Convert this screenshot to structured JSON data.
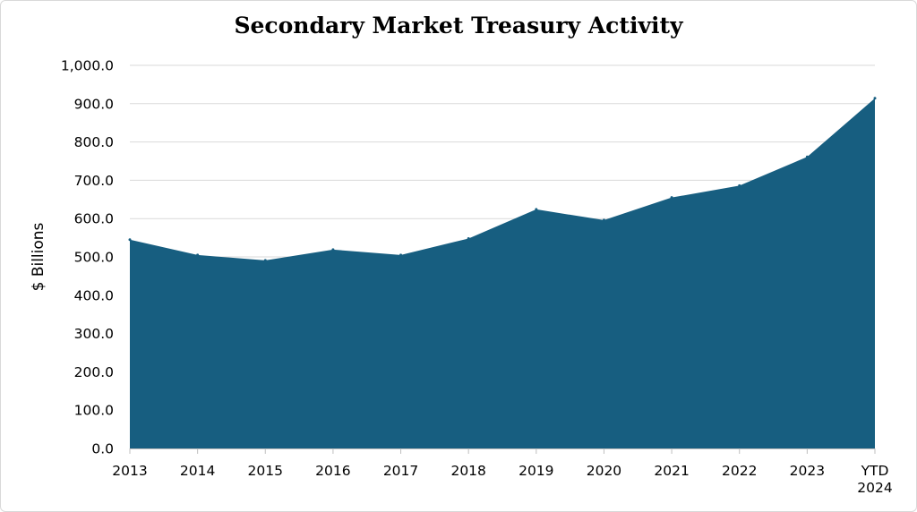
{
  "chart_data": {
    "type": "area",
    "title": "Secondary Market Treasury Activity",
    "xlabel": "",
    "ylabel": "$ Billions",
    "categories": [
      [
        "2013"
      ],
      [
        "2014"
      ],
      [
        "2015"
      ],
      [
        "2016"
      ],
      [
        "2017"
      ],
      [
        "2018"
      ],
      [
        "2019"
      ],
      [
        "2020"
      ],
      [
        "2021"
      ],
      [
        "2022"
      ],
      [
        "2023"
      ],
      [
        "YTD",
        "2024"
      ]
    ],
    "values": [
      545,
      505,
      491,
      519,
      505,
      548,
      624,
      596,
      655,
      686,
      761,
      914
    ],
    "ylim": [
      0,
      1000
    ],
    "yticks": [
      "0.0",
      "100.0",
      "200.0",
      "300.0",
      "400.0",
      "500.0",
      "600.0",
      "700.0",
      "800.0",
      "900.0",
      "1,000.0"
    ],
    "grid": true,
    "legend": "none",
    "colors": {
      "area": "#175e80",
      "grid": "#d9d9d9",
      "axis": "#bfbfbf"
    }
  }
}
